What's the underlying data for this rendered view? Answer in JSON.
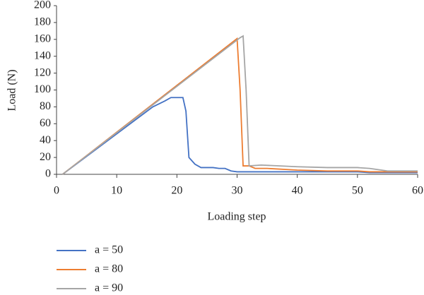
{
  "chart_data": {
    "type": "line",
    "x_label": "Loading step",
    "y_label": "Load (N)",
    "xlim": [
      0,
      60
    ],
    "xticks": [
      0,
      10,
      20,
      30,
      40,
      50,
      60
    ],
    "ylim": [
      0,
      200
    ],
    "yticks": [
      0,
      20,
      40,
      60,
      80,
      100,
      120,
      140,
      160,
      180,
      200
    ],
    "grid": false,
    "legend": "bottom-left",
    "series": [
      {
        "name": "a = 50",
        "color": "#4472c4",
        "x": [
          1,
          16,
          18,
          19,
          21,
          21.5,
          22,
          23,
          24,
          26,
          27,
          28,
          29,
          30,
          40,
          50,
          52,
          60
        ],
        "values": [
          0,
          80,
          87,
          91,
          91,
          75,
          20,
          12,
          8,
          8,
          7,
          7,
          4,
          3,
          3,
          3,
          2,
          2
        ]
      },
      {
        "name": "a = 80",
        "color": "#ed7d31",
        "x": [
          1,
          30,
          30.5,
          31,
          32,
          33,
          35,
          40,
          45,
          50,
          52,
          60
        ],
        "values": [
          0,
          161,
          100,
          10,
          10,
          7,
          7,
          5,
          4,
          4,
          3,
          3
        ]
      },
      {
        "name": "a = 90",
        "color": "#a5a5a5",
        "x": [
          1,
          30.5,
          31,
          31.5,
          32,
          34,
          40,
          45,
          50,
          52,
          55,
          60
        ],
        "values": [
          0,
          162,
          164,
          100,
          10,
          11,
          9,
          8,
          8,
          7,
          4,
          4
        ]
      }
    ]
  }
}
